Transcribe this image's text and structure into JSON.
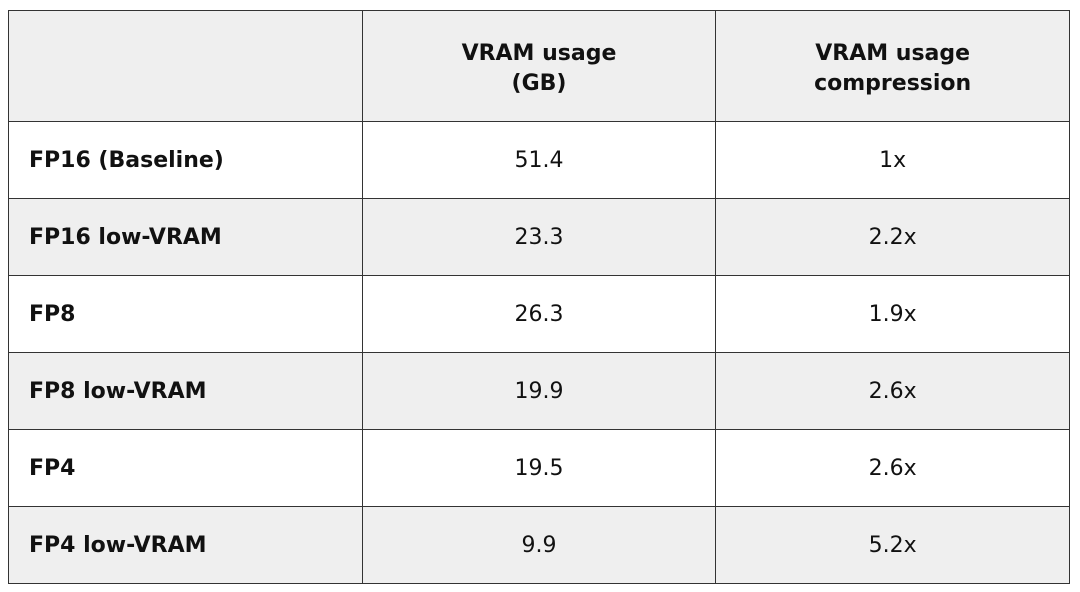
{
  "table": {
    "columns": [
      "VRAM usage (GB)",
      "VRAM usage compression"
    ],
    "rows": [
      {
        "label": "FP16 (Baseline)",
        "values": [
          51.4,
          "1x"
        ]
      },
      {
        "label": "FP16 low-VRAM",
        "values": [
          23.3,
          "2.2x"
        ]
      },
      {
        "label": "FP8",
        "values": [
          26.3,
          "1.9x"
        ]
      },
      {
        "label": "FP8 low-VRAM",
        "values": [
          19.9,
          "2.6x"
        ]
      },
      {
        "label": "FP4",
        "values": [
          19.5,
          "2.6x"
        ]
      },
      {
        "label": "FP4 low-VRAM",
        "values": [
          9.9,
          "5.2x"
        ]
      }
    ]
  }
}
